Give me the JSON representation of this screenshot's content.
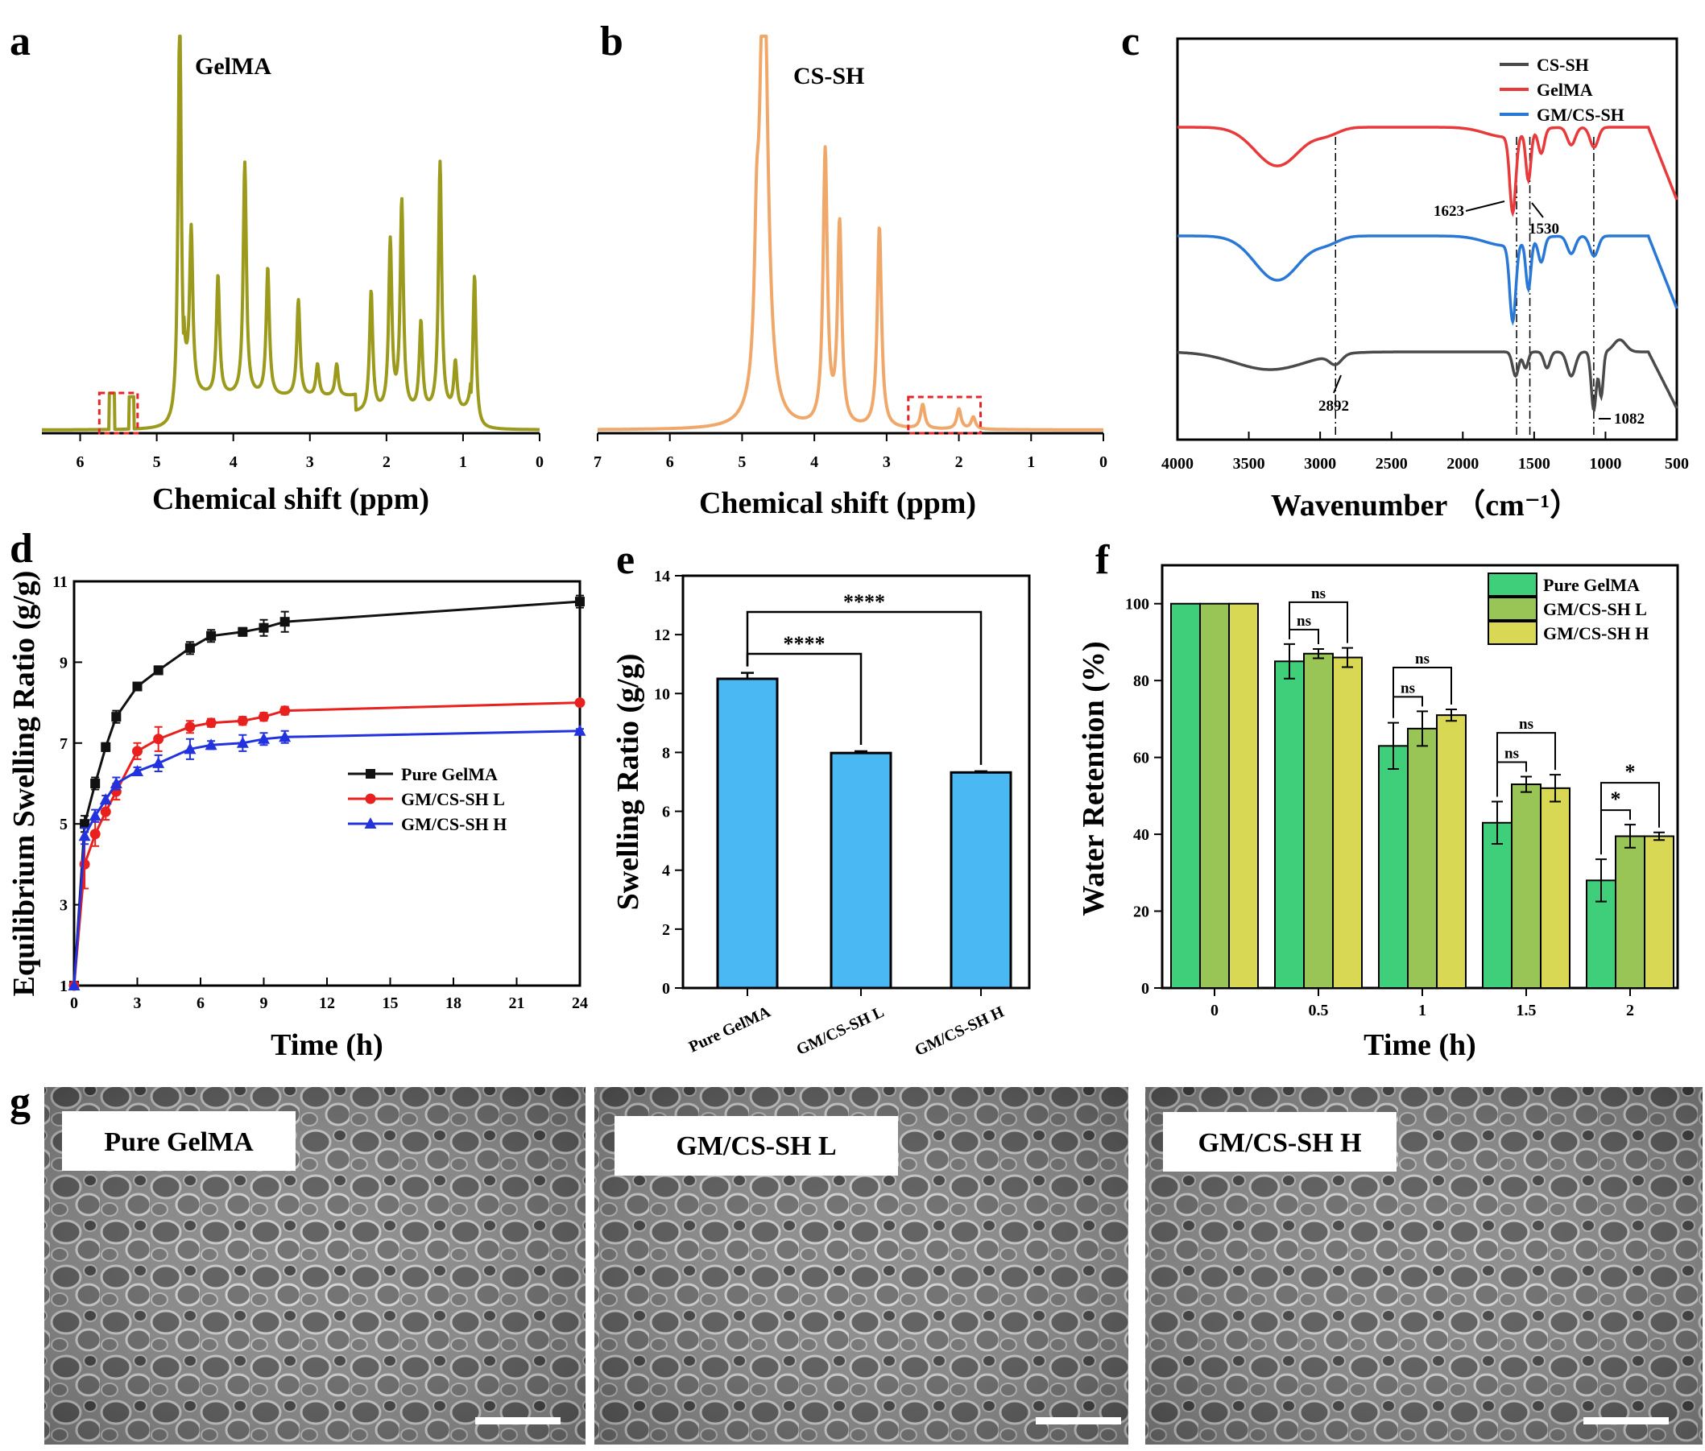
{
  "panel_labels": {
    "a": "a",
    "b": "b",
    "c": "c",
    "d": "d",
    "e": "e",
    "f": "f",
    "g": "g"
  },
  "colors": {
    "gelma_nmr": "#9b9a1c",
    "cssh_nmr": "#f0a86a",
    "ir_cssh": "#4a4a4a",
    "ir_gelma": "#e8393b",
    "ir_gmcssh": "#2a78d6",
    "swell_pure": "#111111",
    "swell_l": "#e8211e",
    "swell_h": "#2233dd",
    "bar_e": "#4ab8f2",
    "bar_pure": "#3fcf7a",
    "bar_l": "#99c456",
    "bar_h": "#d8d855"
  },
  "chart_data": [
    {
      "id": "a",
      "type": "line",
      "title": "GelMA",
      "xlabel": "Chemical shift (ppm)",
      "xlim": [
        6.5,
        0
      ],
      "xticks": [
        "6",
        "5",
        "4",
        "3",
        "2",
        "1",
        "0"
      ],
      "peaks_ppm": [
        4.7,
        4.55,
        4.2,
        3.85,
        3.55,
        3.15,
        2.9,
        2.65,
        2.2,
        1.95,
        1.8,
        1.55,
        1.3,
        1.1,
        0.85
      ],
      "highlight_region_ppm": [
        5.25,
        5.75
      ]
    },
    {
      "id": "b",
      "type": "line",
      "title": "CS-SH",
      "xlabel": "Chemical shift (ppm)",
      "xlim": [
        7,
        0
      ],
      "xticks": [
        "7",
        "6",
        "5",
        "4",
        "3",
        "2",
        "1",
        "0"
      ],
      "peaks_ppm": [
        4.8,
        4.7,
        3.85,
        3.65,
        3.1,
        2.5,
        2.0,
        1.8
      ],
      "highlight_region_ppm": [
        1.7,
        2.7
      ]
    },
    {
      "id": "c",
      "type": "line",
      "xlabel": "Wavenumber （cm⁻¹）",
      "xlim": [
        4000,
        500
      ],
      "xticks": [
        "4000",
        "3500",
        "3000",
        "2500",
        "2000",
        "1500",
        "1000",
        "500"
      ],
      "series": [
        {
          "name": "CS-SH"
        },
        {
          "name": "GelMA"
        },
        {
          "name": "GM/CS-SH"
        }
      ],
      "reference_lines": [
        2892,
        1623,
        1530,
        1082
      ],
      "annotations": [
        "1623",
        "1530",
        "2892",
        "1082"
      ]
    },
    {
      "id": "d",
      "type": "line",
      "xlabel": "Time (h)",
      "ylabel": "Equilibrium Swelling Ratio (g/g)",
      "xlim": [
        0,
        24
      ],
      "ylim": [
        1,
        11
      ],
      "xticks": [
        "0",
        "3",
        "6",
        "9",
        "12",
        "15",
        "18",
        "21",
        "24"
      ],
      "yticks": [
        "1",
        "3",
        "5",
        "7",
        "9",
        "11"
      ],
      "x": [
        0,
        0.5,
        1,
        1.5,
        2,
        3,
        4,
        5.5,
        6.5,
        8,
        9,
        10,
        24
      ],
      "series": [
        {
          "name": "Pure GelMA",
          "marker": "square",
          "values": [
            1,
            5.0,
            6.0,
            6.9,
            7.65,
            8.4,
            8.8,
            9.35,
            9.65,
            9.75,
            9.85,
            10.0,
            10.5
          ],
          "errors": [
            0,
            0.2,
            0.15,
            0.1,
            0.15,
            0.1,
            0.1,
            0.15,
            0.15,
            0.1,
            0.2,
            0.25,
            0.15
          ]
        },
        {
          "name": "GM/CS-SH L",
          "marker": "circle",
          "values": [
            1,
            4.0,
            4.75,
            5.3,
            5.8,
            6.8,
            7.1,
            7.4,
            7.5,
            7.55,
            7.65,
            7.8,
            8.0
          ],
          "errors": [
            0,
            0.6,
            0.3,
            0.2,
            0.2,
            0.2,
            0.3,
            0.15,
            0.1,
            0.1,
            0.1,
            0.1,
            0.05
          ]
        },
        {
          "name": "GM/CS-SH H",
          "marker": "triangle",
          "values": [
            1,
            4.7,
            5.2,
            5.6,
            6.0,
            6.3,
            6.5,
            6.85,
            6.95,
            7.0,
            7.1,
            7.15,
            7.3
          ],
          "errors": [
            0,
            0.2,
            0.15,
            0.1,
            0.15,
            0.1,
            0.2,
            0.25,
            0.1,
            0.2,
            0.15,
            0.15,
            0.05
          ]
        }
      ]
    },
    {
      "id": "e",
      "type": "bar",
      "ylabel": "Swelling Ratio (g/g)",
      "ylim": [
        0,
        14
      ],
      "yticks": [
        "0",
        "2",
        "4",
        "6",
        "8",
        "10",
        "12",
        "14"
      ],
      "categories": [
        "Pure GelMA",
        "GM/CS-SH L",
        "GM/CS-SH H"
      ],
      "values": [
        10.5,
        7.98,
        7.32
      ],
      "errors": [
        0.2,
        0.06,
        0.04
      ],
      "significance": [
        {
          "from": 0,
          "to": 1,
          "label": "****"
        },
        {
          "from": 0,
          "to": 2,
          "label": "****"
        }
      ]
    },
    {
      "id": "f",
      "type": "bar",
      "xlabel": "Time (h)",
      "ylabel": "Water Retention (%)",
      "ylim": [
        0,
        110
      ],
      "yticks": [
        "0",
        "20",
        "40",
        "60",
        "80",
        "100"
      ],
      "categories": [
        "0",
        "0.5",
        "1",
        "1.5",
        "2"
      ],
      "series": [
        {
          "name": "Pure GelMA",
          "values": [
            100,
            85,
            63,
            43,
            28
          ],
          "errors": [
            0,
            4.5,
            6,
            5.5,
            5.5
          ]
        },
        {
          "name": "GM/CS-SH L",
          "values": [
            100,
            87,
            67.5,
            53,
            39.5
          ],
          "errors": [
            0,
            1.2,
            4.5,
            2,
            3
          ]
        },
        {
          "name": "GM/CS-SH H",
          "values": [
            100,
            86,
            71,
            52,
            39.5
          ],
          "errors": [
            0,
            2.5,
            1.5,
            3.5,
            1
          ]
        }
      ],
      "significance": [
        {
          "group": 1,
          "from": 0,
          "to": 1,
          "label": "ns"
        },
        {
          "group": 1,
          "from": 0,
          "to": 2,
          "label": "ns"
        },
        {
          "group": 2,
          "from": 0,
          "to": 1,
          "label": "ns"
        },
        {
          "group": 2,
          "from": 0,
          "to": 2,
          "label": "ns"
        },
        {
          "group": 3,
          "from": 0,
          "to": 1,
          "label": "ns"
        },
        {
          "group": 3,
          "from": 0,
          "to": 2,
          "label": "ns"
        },
        {
          "group": 4,
          "from": 0,
          "to": 1,
          "label": "*"
        },
        {
          "group": 4,
          "from": 0,
          "to": 2,
          "label": "*"
        }
      ]
    }
  ],
  "panel_g": {
    "images": [
      {
        "label": "Pure GelMA"
      },
      {
        "label": "GM/CS-SH L"
      },
      {
        "label": "GM/CS-SH H"
      }
    ]
  }
}
